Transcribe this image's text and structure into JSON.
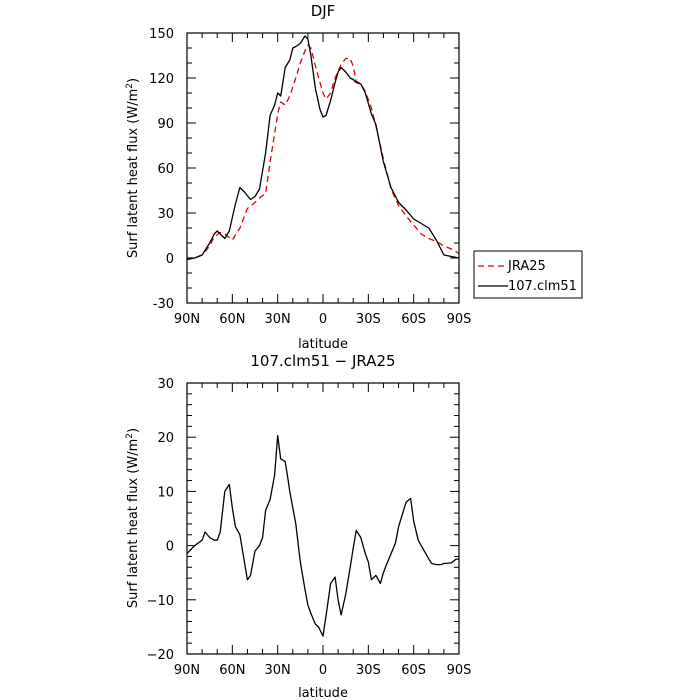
{
  "chart_data": [
    {
      "type": "line",
      "title": "DJF",
      "xlabel": "latitude",
      "ylabel_main": "Surf latent heat flux (W/m",
      "ylabel_sup": "2",
      "ylabel_close": ")",
      "xlim": [
        90,
        -90
      ],
      "ylim": [
        -30,
        150
      ],
      "x_ticks": [
        90,
        60,
        30,
        0,
        -30,
        -60,
        -90
      ],
      "x_tick_labels": [
        "90N",
        "60N",
        "30N",
        "0",
        "30S",
        "60S",
        "90S"
      ],
      "y_ticks": [
        -30,
        0,
        30,
        60,
        90,
        120,
        150
      ],
      "y_tick_labels": [
        "-30",
        "0",
        "30",
        "60",
        "90",
        "120",
        "150"
      ],
      "legend_placement": "right",
      "series": [
        {
          "name": "JRA25",
          "color": "#e00000",
          "dash": "dashed",
          "x": [
            90,
            85,
            80,
            75,
            72,
            68,
            65,
            60,
            55,
            50,
            45,
            42,
            38,
            35,
            30,
            28,
            25,
            22,
            18,
            15,
            12,
            10,
            8,
            5,
            2,
            0,
            -2,
            -5,
            -8,
            -12,
            -15,
            -18,
            -20,
            -22,
            -25,
            -28,
            -32,
            -35,
            -40,
            -45,
            -50,
            -55,
            -60,
            -65,
            -70,
            -75,
            -80,
            -85,
            -90
          ],
          "y": [
            0,
            0,
            2,
            8,
            14,
            17,
            16,
            12,
            20,
            33,
            37,
            40,
            43,
            64,
            96,
            104,
            102,
            108,
            120,
            130,
            138,
            142,
            140,
            128,
            117,
            110,
            106,
            110,
            120,
            129,
            133,
            133,
            128,
            118,
            116,
            111,
            100,
            88,
            66,
            46,
            35,
            28,
            22,
            16,
            13,
            11,
            8,
            6,
            3
          ]
        },
        {
          "name": "107.clm51",
          "color": "#000000",
          "dash": "solid",
          "x": [
            90,
            85,
            80,
            75,
            72,
            70,
            65,
            62,
            58,
            55,
            52,
            48,
            45,
            42,
            38,
            35,
            32,
            30,
            28,
            25,
            22,
            20,
            18,
            15,
            12,
            10,
            8,
            5,
            2,
            0,
            -2,
            -5,
            -8,
            -10,
            -12,
            -15,
            -18,
            -20,
            -22,
            -25,
            -28,
            -32,
            -35,
            -40,
            -45,
            -50,
            -55,
            -60,
            -65,
            -70,
            -75,
            -80,
            -85,
            -90
          ],
          "y": [
            -1,
            0,
            2,
            10,
            16,
            18,
            13,
            18,
            36,
            47,
            44,
            39,
            41,
            46,
            70,
            95,
            102,
            110,
            108,
            127,
            132,
            140,
            141,
            143,
            148,
            146,
            135,
            113,
            99,
            94,
            95,
            105,
            117,
            124,
            127,
            124,
            120,
            119,
            117,
            116,
            110,
            96,
            89,
            64,
            47,
            37,
            32,
            26,
            23,
            20,
            12,
            2,
            1,
            0
          ]
        }
      ]
    },
    {
      "type": "line",
      "title": "107.clm51  −  JRA25",
      "xlabel": "latitude",
      "ylabel_main": "Surf latent heat flux (W/m",
      "ylabel_sup": "2",
      "ylabel_close": ")",
      "xlim": [
        90,
        -90
      ],
      "ylim": [
        -20,
        30
      ],
      "x_ticks": [
        90,
        60,
        30,
        0,
        -30,
        -60,
        -90
      ],
      "x_tick_labels": [
        "90N",
        "60N",
        "30N",
        "0",
        "30S",
        "60S",
        "90S"
      ],
      "y_ticks": [
        -20,
        -10,
        0,
        10,
        20,
        30
      ],
      "y_tick_labels": [
        "−20",
        "−10",
        "0",
        "10",
        "20",
        "30"
      ],
      "series": [
        {
          "name": "",
          "color": "#000000",
          "dash": "solid",
          "x": [
            90,
            85,
            80,
            78,
            75,
            72,
            70,
            68,
            65,
            62,
            60,
            58,
            55,
            52,
            50,
            48,
            45,
            42,
            40,
            38,
            35,
            32,
            30,
            28,
            25,
            23,
            22,
            20,
            18,
            15,
            12,
            10,
            8,
            5,
            3,
            0,
            -2,
            -5,
            -8,
            -10,
            -12,
            -15,
            -18,
            -20,
            -22,
            -25,
            -28,
            -30,
            -32,
            -35,
            -38,
            -40,
            -42,
            -45,
            -48,
            -50,
            -55,
            -58,
            -60,
            -63,
            -65,
            -68,
            -70,
            -72,
            -75,
            -78,
            -80,
            -85,
            -88,
            -90
          ],
          "y": [
            -1.5,
            0,
            1,
            2.5,
            1.5,
            1,
            1,
            2.5,
            10,
            11.3,
            7,
            3.5,
            2,
            -3,
            -6.3,
            -5.5,
            -1,
            0,
            1.5,
            6.5,
            8.5,
            13,
            20.3,
            16,
            15.5,
            12,
            10,
            7,
            4,
            -3,
            -8,
            -11,
            -12.5,
            -14.5,
            -15,
            -16.7,
            -13,
            -7,
            -5.8,
            -10,
            -12.8,
            -9,
            -4,
            -0.5,
            2.8,
            1.5,
            -1.5,
            -3,
            -6.3,
            -5.5,
            -7,
            -5,
            -3.5,
            -1.5,
            0.5,
            3.5,
            8,
            8.7,
            4.5,
            1,
            0,
            -1.5,
            -2.5,
            -3.3,
            -3.5,
            -3.5,
            -3.3,
            -3.2,
            -2.5,
            -2.5
          ]
        }
      ]
    }
  ]
}
